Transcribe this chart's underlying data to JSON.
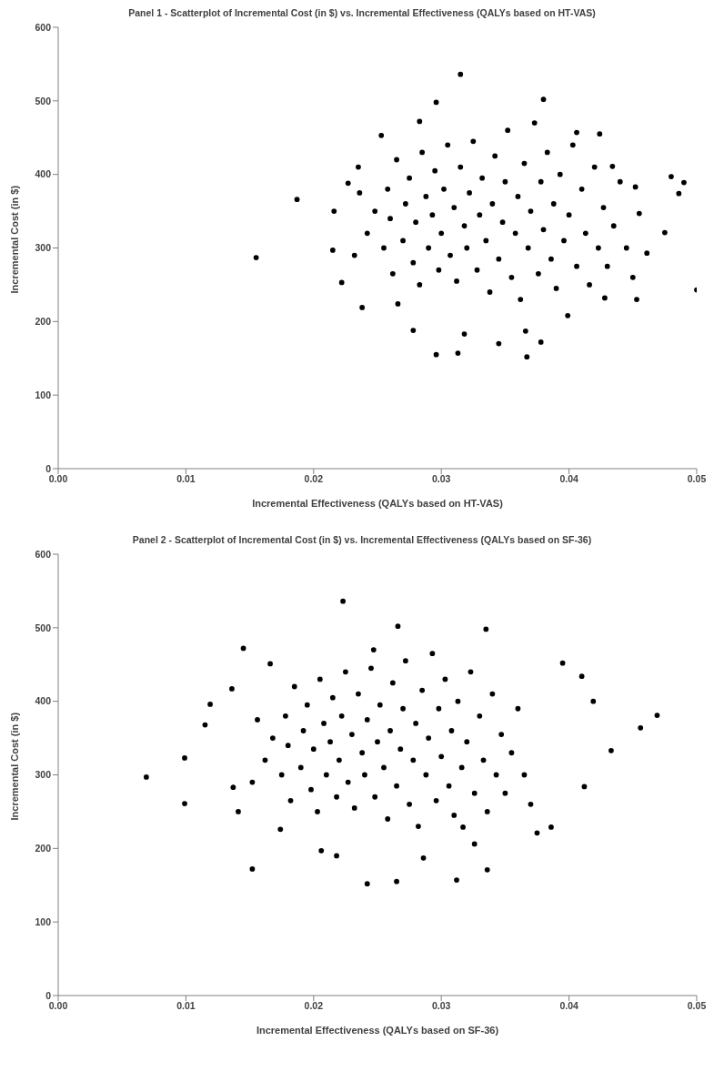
{
  "chart_data": [
    {
      "type": "scatter",
      "title": "Panel 1 - Scatterplot of Incremental Cost (in $) vs. Incremental Effectiveness (QALYs based on HT-VAS)",
      "xlabel": "Incremental Effectiveness (QALYs based on HT-VAS)",
      "ylabel": "Incremental Cost (in $)",
      "marker": "circle",
      "grid": false,
      "legend": false,
      "xlim": [
        0,
        0.05
      ],
      "xticks": [
        {
          "value": 0,
          "label": "0.00"
        },
        {
          "value": 0.01,
          "label": "0.01"
        },
        {
          "value": 0.02,
          "label": "0.02"
        },
        {
          "value": 0.03,
          "label": "0.03"
        },
        {
          "value": 0.04,
          "label": "0.04"
        },
        {
          "value": 0.05,
          "label": "0.05"
        }
      ],
      "ylim": [
        0,
        600
      ],
      "yticks": [
        0,
        100,
        200,
        300,
        400,
        500,
        600
      ],
      "series": [
        {
          "color": "#000000",
          "x": [
            0.0155,
            0.0187,
            0.05,
            0.048,
            0.049,
            0.0486,
            0.0475,
            0.0315,
            0.038,
            0.0296,
            0.0296,
            0.0367,
            0.0313,
            0.0378,
            0.0345,
            0.0238,
            0.0222,
            0.0215,
            0.0216,
            0.0227,
            0.0235,
            0.0253,
            0.0283,
            0.0406,
            0.0424,
            0.0461,
            0.0453,
            0.0452,
            0.0455,
            0.0434,
            0.0428,
            0.0399,
            0.0366,
            0.0318,
            0.0278,
            0.0266,
            0.0255,
            0.0258,
            0.026,
            0.0262,
            0.0265,
            0.027,
            0.0272,
            0.0275,
            0.0278,
            0.028,
            0.0283,
            0.0285,
            0.0288,
            0.029,
            0.0293,
            0.0295,
            0.0298,
            0.03,
            0.0302,
            0.0305,
            0.0307,
            0.031,
            0.0312,
            0.0315,
            0.0318,
            0.032,
            0.0322,
            0.0325,
            0.0328,
            0.033,
            0.0332,
            0.0335,
            0.0338,
            0.034,
            0.0342,
            0.0345,
            0.0348,
            0.035,
            0.0352,
            0.0355,
            0.0358,
            0.036,
            0.0362,
            0.0365,
            0.0368,
            0.037,
            0.0373,
            0.0376,
            0.0378,
            0.038,
            0.0383,
            0.0386,
            0.0388,
            0.039,
            0.0393,
            0.0396,
            0.04,
            0.0403,
            0.0406,
            0.041,
            0.0413,
            0.0416,
            0.042,
            0.0423,
            0.0427,
            0.043,
            0.0435,
            0.044,
            0.0445,
            0.045,
            0.0248,
            0.0242,
            0.0236,
            0.0232
          ],
          "values": [
            287,
            366,
            243,
            397,
            389,
            374,
            321,
            536,
            502,
            498,
            155,
            152,
            157,
            172,
            170,
            219,
            253,
            297,
            350,
            388,
            410,
            453,
            472,
            457,
            455,
            293,
            230,
            383,
            347,
            411,
            232,
            208,
            187,
            183,
            188,
            224,
            300,
            380,
            340,
            265,
            420,
            310,
            360,
            395,
            280,
            335,
            250,
            430,
            370,
            300,
            345,
            405,
            270,
            320,
            380,
            440,
            290,
            355,
            255,
            410,
            330,
            300,
            375,
            445,
            270,
            345,
            395,
            310,
            240,
            360,
            425,
            285,
            335,
            390,
            460,
            260,
            320,
            370,
            230,
            415,
            300,
            350,
            470,
            265,
            390,
            325,
            430,
            285,
            360,
            245,
            400,
            310,
            345,
            440,
            275,
            380,
            320,
            250,
            410,
            300,
            355,
            275,
            330,
            390,
            300,
            260,
            350,
            320,
            375,
            290
          ]
        }
      ]
    },
    {
      "type": "scatter",
      "title": "Panel 2 - Scatterplot of Incremental Cost (in $) vs. Incremental Effectiveness (QALYs based on SF-36)",
      "xlabel": "Incremental Effectiveness (QALYs based on SF-36)",
      "ylabel": "Incremental Cost (in $)",
      "marker": "circle",
      "grid": false,
      "legend": false,
      "xlim": [
        0,
        0.05
      ],
      "xticks": [
        {
          "value": 0,
          "label": "0.00"
        },
        {
          "value": 0.01,
          "label": "0.01"
        },
        {
          "value": 0.02,
          "label": "0.02"
        },
        {
          "value": 0.03,
          "label": "0.03"
        },
        {
          "value": 0.04,
          "label": "0.04"
        },
        {
          "value": 0.05,
          "label": "0.05"
        }
      ],
      "ylim": [
        0,
        600
      ],
      "yticks": [
        0,
        100,
        200,
        300,
        400,
        500,
        600
      ],
      "series": [
        {
          "color": "#000000",
          "x": [
            0.0069,
            0.0099,
            0.0099,
            0.0115,
            0.0119,
            0.0136,
            0.0145,
            0.0152,
            0.0223,
            0.0266,
            0.0335,
            0.0242,
            0.0265,
            0.0312,
            0.0336,
            0.0469,
            0.0456,
            0.0433,
            0.0419,
            0.041,
            0.0395,
            0.0412,
            0.0386,
            0.0375,
            0.0166,
            0.0137,
            0.0141,
            0.0174,
            0.0206,
            0.0218,
            0.0286,
            0.0317,
            0.0326,
            0.0247,
            0.0175,
            0.0178,
            0.018,
            0.0182,
            0.0185,
            0.019,
            0.0192,
            0.0195,
            0.0198,
            0.02,
            0.0203,
            0.0205,
            0.0208,
            0.021,
            0.0213,
            0.0215,
            0.0218,
            0.022,
            0.0222,
            0.0225,
            0.0227,
            0.023,
            0.0232,
            0.0235,
            0.0238,
            0.024,
            0.0242,
            0.0245,
            0.0248,
            0.025,
            0.0252,
            0.0255,
            0.0258,
            0.026,
            0.0262,
            0.0265,
            0.0268,
            0.027,
            0.0272,
            0.0275,
            0.0278,
            0.028,
            0.0282,
            0.0285,
            0.0288,
            0.029,
            0.0293,
            0.0296,
            0.0298,
            0.03,
            0.0303,
            0.0306,
            0.0308,
            0.031,
            0.0313,
            0.0316,
            0.032,
            0.0323,
            0.0326,
            0.033,
            0.0333,
            0.0336,
            0.034,
            0.0343,
            0.0347,
            0.035,
            0.0355,
            0.036,
            0.0365,
            0.037,
            0.0168,
            0.0162,
            0.0156,
            0.0152
          ],
          "values": [
            297,
            323,
            261,
            368,
            396,
            417,
            472,
            172,
            536,
            502,
            498,
            152,
            155,
            157,
            171,
            381,
            364,
            333,
            400,
            434,
            452,
            284,
            229,
            221,
            451,
            283,
            250,
            226,
            197,
            190,
            187,
            229,
            206,
            470,
            300,
            380,
            340,
            265,
            420,
            310,
            360,
            395,
            280,
            335,
            250,
            430,
            370,
            300,
            345,
            405,
            270,
            320,
            380,
            440,
            290,
            355,
            255,
            410,
            330,
            300,
            375,
            445,
            270,
            345,
            395,
            310,
            240,
            360,
            425,
            285,
            335,
            390,
            455,
            260,
            320,
            370,
            230,
            415,
            300,
            350,
            465,
            265,
            390,
            325,
            430,
            285,
            360,
            245,
            400,
            310,
            345,
            440,
            275,
            380,
            320,
            250,
            410,
            300,
            355,
            275,
            330,
            390,
            300,
            260,
            350,
            320,
            375,
            290
          ]
        }
      ]
    }
  ]
}
